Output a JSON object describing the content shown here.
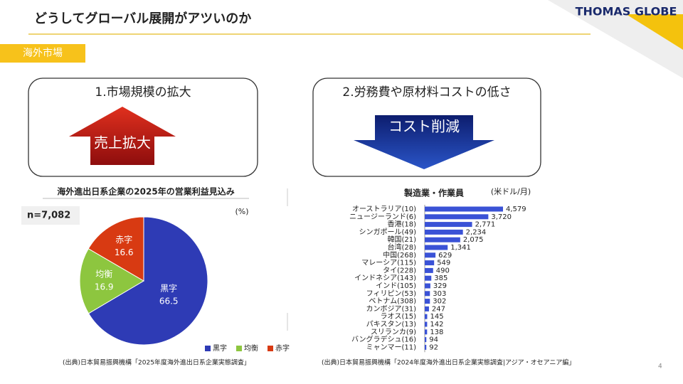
{
  "header": {
    "title": "どうしてグローバル展開がアツいのか",
    "logo": "THOMAS GLOBE"
  },
  "section": "海外市場",
  "box1": {
    "title": "1.市場規模の拡大",
    "arrow": "売上拡大"
  },
  "box2": {
    "title": "2.労務費や原材料コストの低さ",
    "arrow": "コスト削減"
  },
  "chart_data": [
    {
      "type": "pie",
      "title": "海外進出日系企業の2025年の営業利益見込み",
      "annotation": "n=7,082",
      "unit": "(%)",
      "categories": [
        "黒字",
        "均衡",
        "赤字"
      ],
      "values": [
        66.5,
        16.9,
        16.6
      ],
      "colors": [
        "#2e3bb5",
        "#8dc63f",
        "#d83a12"
      ],
      "legend": "bottom-right"
    },
    {
      "type": "bar",
      "title": "製造業・作業員",
      "unit": "(米ドル/月)",
      "color": "#3a52d6",
      "categories": [
        "オーストラリア(10)",
        "ニュージーランド(6)",
        "香港(18)",
        "シンガポール(49)",
        "韓国(21)",
        "台湾(28)",
        "中国(268)",
        "マレーシア(115)",
        "タイ(228)",
        "インドネシア(143)",
        "インド(105)",
        "フィリピン(53)",
        "ベトナム(308)",
        "カンボジア(31)",
        "ラオス(15)",
        "パキスタン(13)",
        "スリランカ(9)",
        "バングラデシュ(16)",
        "ミャンマー(11)"
      ],
      "values": [
        4579,
        3720,
        2771,
        2234,
        2075,
        1341,
        629,
        549,
        490,
        385,
        329,
        303,
        302,
        247,
        145,
        142,
        138,
        94,
        92
      ],
      "value_labels": [
        "4,579",
        "3,720",
        "2,771",
        "2,234",
        "2,075",
        "1,341",
        "629",
        "549",
        "490",
        "385",
        "329",
        "303",
        "302",
        "247",
        "145",
        "142",
        "138",
        "94",
        "92"
      ]
    }
  ],
  "sources": [
    "(出典)日本貿易振興機構「2025年度海外進出日系企業実態調査」",
    "(出典)日本貿易振興機構「2024年度海外進出日系企業実態調査|アジア・オセアニア編」"
  ],
  "page_number": "4"
}
